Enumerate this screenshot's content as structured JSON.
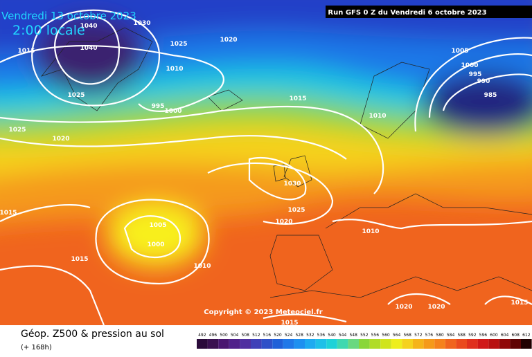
{
  "header": {
    "valid_date": "Vendredi 13 octobre 2023",
    "local_time": "2:00 locale",
    "run": "Run GFS 0 Z du Vendredi 6 octobre 2023"
  },
  "copyright": "Copyright © 2023 Meteociel.fr",
  "footer": {
    "title": "Géop. Z500 & pression au sol",
    "lead": "(+ 168h)"
  },
  "isobar_labels": [
    "1040",
    "1030",
    "1015",
    "1040",
    "1025",
    "1020",
    "1010",
    "1025",
    "995",
    "1000",
    "1015",
    "1025",
    "1020",
    "1010",
    "1005",
    "1000",
    "995",
    "990",
    "985",
    "1030",
    "1025",
    "1020",
    "1015",
    "1005",
    "1000",
    "1015",
    "1010",
    "1010",
    "1020",
    "1020",
    "1015",
    "1015"
  ],
  "scale": [
    492,
    496,
    500,
    504,
    508,
    512,
    516,
    520,
    524,
    528,
    532,
    536,
    540,
    544,
    548,
    552,
    556,
    560,
    564,
    568,
    572,
    576,
    580,
    584,
    588,
    592,
    596,
    600,
    604,
    608,
    612
  ]
}
